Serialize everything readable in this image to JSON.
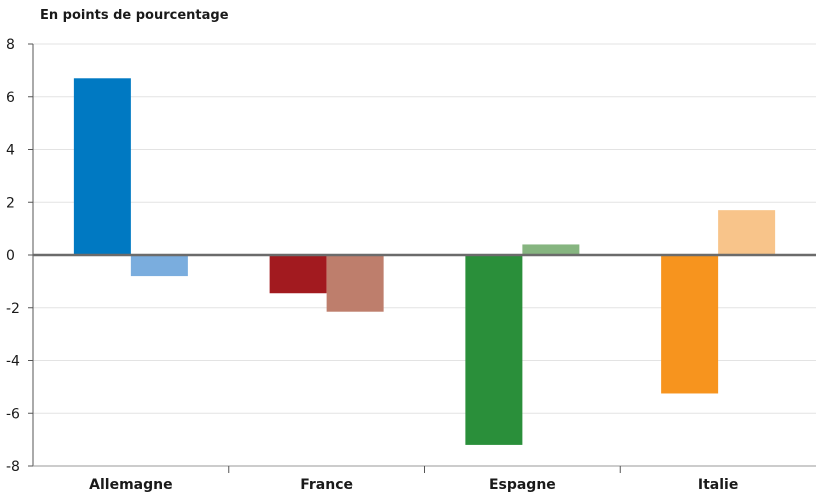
{
  "chart_data": {
    "type": "bar",
    "ylabel": "En points de pourcentage",
    "ylim": [
      -8,
      8
    ],
    "yticks": [
      8,
      6,
      4,
      2,
      0,
      -2,
      -4,
      -6,
      -8
    ],
    "grid": true,
    "categories": [
      "Allemagne",
      "France",
      "Espagne",
      "Italie"
    ],
    "bars": [
      {
        "category": "Allemagne",
        "values": [
          6.7,
          -0.8
        ],
        "colors": [
          "#0079c2",
          "#7aadde"
        ]
      },
      {
        "category": "France",
        "values": [
          -1.45,
          -2.15
        ],
        "colors": [
          "#a21a1f",
          "#be7e6c"
        ]
      },
      {
        "category": "Espagne",
        "values": [
          -7.2,
          0.4
        ],
        "colors": [
          "#2a8f3a",
          "#86b580"
        ]
      },
      {
        "category": "Italie",
        "values": [
          -5.25,
          1.7
        ],
        "colors": [
          "#f7941e",
          "#f8c48a"
        ]
      }
    ]
  }
}
